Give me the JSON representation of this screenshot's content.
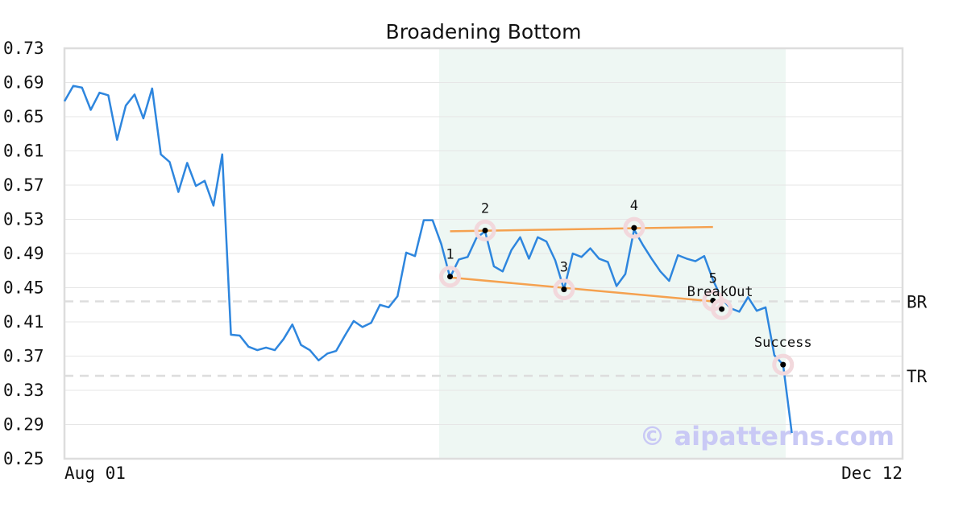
{
  "chart_data": {
    "type": "line",
    "title": "Broadening Bottom",
    "ylim": [
      0.25,
      0.73
    ],
    "yticks": [
      "0.25",
      "0.29",
      "0.33",
      "0.37",
      "0.41",
      "0.45",
      "0.49",
      "0.53",
      "0.57",
      "0.61",
      "0.65",
      "0.69",
      "0.73"
    ],
    "xticks": [
      "Aug 01",
      "Dec 12"
    ],
    "n_points": 84,
    "grid": true,
    "series": [
      {
        "values": [
          0.668,
          0.686,
          0.684,
          0.658,
          0.678,
          0.675,
          0.623,
          0.663,
          0.676,
          0.648,
          0.683,
          0.606,
          0.597,
          0.562,
          0.596,
          0.569,
          0.575,
          0.546,
          0.606,
          0.395,
          0.394,
          0.381,
          0.377,
          0.38,
          0.377,
          0.39,
          0.407,
          0.383,
          0.377,
          0.365,
          0.373,
          0.376,
          0.394,
          0.411,
          0.404,
          0.409,
          0.43,
          0.427,
          0.44,
          0.491,
          0.487,
          0.529,
          0.529,
          0.501,
          0.462,
          0.483,
          0.486,
          0.508,
          0.516,
          0.475,
          0.469,
          0.494,
          0.509,
          0.484,
          0.509,
          0.504,
          0.482,
          0.448,
          0.49,
          0.486,
          0.496,
          0.484,
          0.48,
          0.452,
          0.466,
          0.518,
          0.5,
          0.484,
          0.469,
          0.458,
          0.488,
          0.484,
          0.481,
          0.487,
          0.459,
          0.437,
          0.426,
          0.422,
          0.439,
          0.423,
          0.427,
          0.371,
          0.36,
          0.28
        ]
      }
    ],
    "pattern_region": {
      "start_index": 42,
      "end_index": 82
    },
    "trendlines": [
      {
        "from": [
          44,
          0.516
        ],
        "to": [
          74,
          0.521
        ]
      },
      {
        "from": [
          44,
          0.462
        ],
        "to": [
          74,
          0.434
        ]
      }
    ],
    "levels": [
      {
        "label": "BR",
        "value": 0.434
      },
      {
        "label": "TR",
        "value": 0.347
      }
    ],
    "annotations": [
      {
        "label": "1",
        "index": 44,
        "value": 0.463
      },
      {
        "label": "2",
        "index": 48,
        "value": 0.517
      },
      {
        "label": "3",
        "index": 57,
        "value": 0.448
      },
      {
        "label": "4",
        "index": 65,
        "value": 0.52
      },
      {
        "label": "5",
        "index": 74,
        "value": 0.435
      },
      {
        "label": "BreakOut",
        "index": 75,
        "value": 0.425
      },
      {
        "label": "Success",
        "index": 82,
        "value": 0.36
      }
    ],
    "watermark": "© aipatterns.com",
    "colors": {
      "line": "#2e86de",
      "trendline": "#f5a14f",
      "region": "#eef7f3",
      "marker_ring": "#f2d8dc",
      "level": "#dddddd",
      "grid": "#e6e6e6",
      "frame": "#dddddd",
      "watermark": "#c9c9f5"
    }
  }
}
